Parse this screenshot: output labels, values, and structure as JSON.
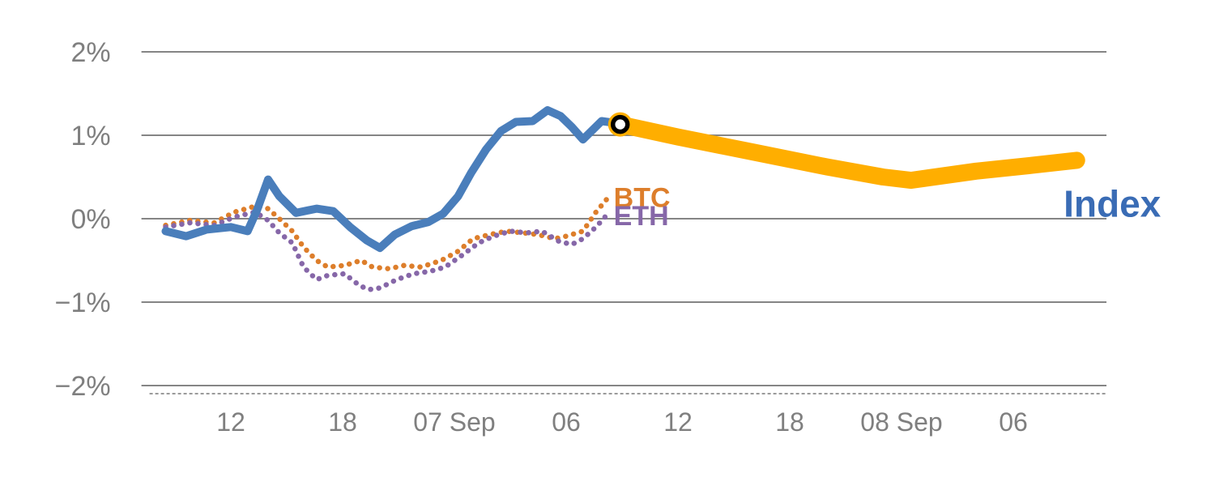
{
  "page": {
    "background": "#ffffff"
  },
  "chart_data": {
    "type": "line",
    "title": "",
    "xlabel": "",
    "ylabel": "",
    "x_unit": "hours (6-hour ticks across 06 Sep – 09 Sep)",
    "xlim": [
      -4.8,
      47
    ],
    "ylim": [
      -2.35,
      2.35
    ],
    "grid": true,
    "grid_color": "#858585",
    "axis_label_color": "#7f7f7f",
    "baseline_dash_color": "#9a9a9a",
    "yticks": [
      {
        "value": 2,
        "label": "2%"
      },
      {
        "value": 1,
        "label": "1%"
      },
      {
        "value": 0,
        "label": "0%"
      },
      {
        "value": -1,
        "label": "−1%"
      },
      {
        "value": -2,
        "label": "−2%"
      }
    ],
    "xticks": [
      {
        "value": 0,
        "label": "12"
      },
      {
        "value": 6,
        "label": "18"
      },
      {
        "value": 12,
        "label": "07 Sep"
      },
      {
        "value": 18,
        "label": "06"
      },
      {
        "value": 24,
        "label": "12"
      },
      {
        "value": 30,
        "label": "18"
      },
      {
        "value": 36,
        "label": "08 Sep"
      },
      {
        "value": 42,
        "label": "06"
      }
    ],
    "series": [
      {
        "name": "BTC",
        "color": "#dd7e2b",
        "line_style": "dotted",
        "line_width": 6.5,
        "points": [
          [
            -3.5,
            -0.08
          ],
          [
            -2.2,
            -0.02
          ],
          [
            -0.9,
            -0.05
          ],
          [
            0.2,
            0.08
          ],
          [
            1.3,
            0.15
          ],
          [
            2.0,
            0.12
          ],
          [
            2.6,
            0.0
          ],
          [
            3.3,
            -0.15
          ],
          [
            3.9,
            -0.34
          ],
          [
            4.6,
            -0.5
          ],
          [
            5.2,
            -0.58
          ],
          [
            6.1,
            -0.56
          ],
          [
            7.0,
            -0.5
          ],
          [
            7.6,
            -0.58
          ],
          [
            8.5,
            -0.6
          ],
          [
            9.3,
            -0.56
          ],
          [
            10.2,
            -0.58
          ],
          [
            11.3,
            -0.5
          ],
          [
            12.2,
            -0.39
          ],
          [
            13.0,
            -0.24
          ],
          [
            13.9,
            -0.19
          ],
          [
            14.8,
            -0.15
          ],
          [
            15.7,
            -0.17
          ],
          [
            16.5,
            -0.19
          ],
          [
            17.4,
            -0.24
          ],
          [
            18.0,
            -0.21
          ],
          [
            18.9,
            -0.15
          ],
          [
            19.6,
            0.08
          ],
          [
            20.2,
            0.24
          ]
        ]
      },
      {
        "name": "ETH",
        "color": "#8667a8",
        "line_style": "dotted",
        "line_width": 6.5,
        "points": [
          [
            -3.5,
            -0.1
          ],
          [
            -2.2,
            -0.05
          ],
          [
            -0.9,
            -0.08
          ],
          [
            0.2,
            0.02
          ],
          [
            1.3,
            0.08
          ],
          [
            2.0,
            -0.02
          ],
          [
            2.6,
            -0.17
          ],
          [
            3.3,
            -0.29
          ],
          [
            3.9,
            -0.58
          ],
          [
            4.6,
            -0.73
          ],
          [
            5.2,
            -0.68
          ],
          [
            6.1,
            -0.66
          ],
          [
            6.9,
            -0.8
          ],
          [
            7.4,
            -0.85
          ],
          [
            8.0,
            -0.83
          ],
          [
            8.9,
            -0.73
          ],
          [
            9.8,
            -0.66
          ],
          [
            10.7,
            -0.63
          ],
          [
            11.5,
            -0.58
          ],
          [
            12.4,
            -0.44
          ],
          [
            13.3,
            -0.29
          ],
          [
            14.1,
            -0.21
          ],
          [
            15.0,
            -0.15
          ],
          [
            15.9,
            -0.17
          ],
          [
            16.7,
            -0.15
          ],
          [
            17.6,
            -0.27
          ],
          [
            18.3,
            -0.31
          ],
          [
            18.9,
            -0.24
          ],
          [
            19.6,
            -0.1
          ],
          [
            20.2,
            0.05
          ]
        ]
      },
      {
        "name": "Index",
        "color": "#4a7ebb",
        "line_style": "solid",
        "line_width": 10,
        "points": [
          [
            -3.5,
            -0.15
          ],
          [
            -2.4,
            -0.21
          ],
          [
            -1.3,
            -0.13
          ],
          [
            0,
            -0.1
          ],
          [
            0.9,
            -0.15
          ],
          [
            1.4,
            0.1
          ],
          [
            2.0,
            0.47
          ],
          [
            2.6,
            0.27
          ],
          [
            3.5,
            0.07
          ],
          [
            4.6,
            0.12
          ],
          [
            5.5,
            0.09
          ],
          [
            6.4,
            -0.1
          ],
          [
            7.3,
            -0.26
          ],
          [
            8.0,
            -0.35
          ],
          [
            8.8,
            -0.19
          ],
          [
            9.7,
            -0.09
          ],
          [
            10.6,
            -0.04
          ],
          [
            11.4,
            0.06
          ],
          [
            12.2,
            0.27
          ],
          [
            12.9,
            0.55
          ],
          [
            13.7,
            0.83
          ],
          [
            14.5,
            1.05
          ],
          [
            15.3,
            1.16
          ],
          [
            16.2,
            1.17
          ],
          [
            17.0,
            1.3
          ],
          [
            17.7,
            1.23
          ],
          [
            18.3,
            1.1
          ],
          [
            18.9,
            0.95
          ],
          [
            19.9,
            1.17
          ],
          [
            20.9,
            1.14
          ]
        ]
      },
      {
        "name": "Index-forecast",
        "color": "#ffae00",
        "line_style": "solid",
        "line_width": 21,
        "points": [
          [
            20.9,
            1.13
          ],
          [
            24,
            0.98
          ],
          [
            28,
            0.8
          ],
          [
            32,
            0.62
          ],
          [
            35,
            0.5
          ],
          [
            36.5,
            0.46
          ],
          [
            40,
            0.57
          ],
          [
            43,
            0.64
          ],
          [
            45.4,
            0.7
          ]
        ]
      }
    ],
    "marker": {
      "x": 20.9,
      "y": 1.13,
      "outer_color": "#ffae00",
      "ring_color": "#000000",
      "inner_color": "#ffffff"
    },
    "labels": [
      {
        "id": "btc",
        "text": "BTC",
        "x": 20.55,
        "y": 0.25,
        "color": "#dd7e2b",
        "size": 34,
        "weight": "bold",
        "anchor": "start"
      },
      {
        "id": "eth",
        "text": "ETH",
        "x": 20.55,
        "y": 0.03,
        "color": "#8667a8",
        "size": 34,
        "weight": "bold",
        "anchor": "start"
      },
      {
        "id": "index",
        "text": "Index",
        "x": 44.7,
        "y": 0.18,
        "color": "#3a6cb5",
        "size": 46,
        "weight": "bold",
        "anchor": "start"
      }
    ]
  }
}
